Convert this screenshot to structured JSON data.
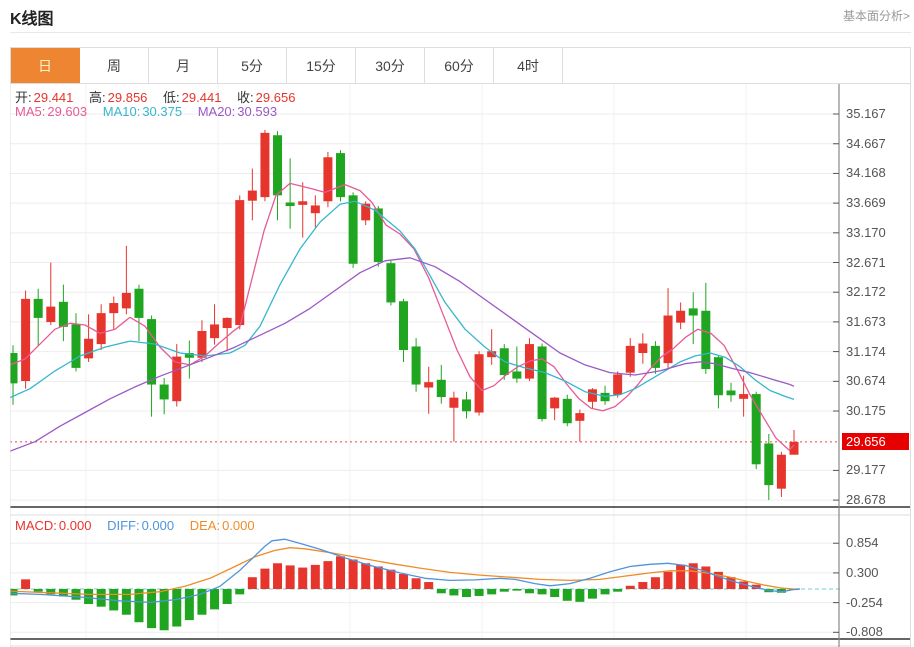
{
  "header": {
    "title": "K线图",
    "link": "基本面分析>"
  },
  "tabs": {
    "items": [
      "日",
      "周",
      "月",
      "5分",
      "15分",
      "30分",
      "60分",
      "4时"
    ],
    "selected_index": 0
  },
  "info": {
    "ohlc": {
      "open_label": "开:",
      "open": "29.441",
      "high_label": "高:",
      "high": "29.856",
      "low_label": "低:",
      "low": "29.441",
      "close_label": "收:",
      "close": "29.656"
    },
    "ma": {
      "ma5_label": "MA5:",
      "ma5": "29.603",
      "ma10_label": "MA10:",
      "ma10": "30.375",
      "ma20_label": "MA20:",
      "ma20": "30.593"
    },
    "macd": {
      "macd_label": "MACD:",
      "macd": "0.000",
      "diff_label": "DIFF:",
      "diff": "0.000",
      "dea_label": "DEA:",
      "dea": "0.000"
    }
  },
  "colors": {
    "up": "#e5352c",
    "down": "#1fa51f",
    "ma5": "#e85a96",
    "ma10": "#36b6ce",
    "ma20": "#9b59c6",
    "diff": "#4f94dd",
    "dea": "#ee8c28",
    "tab_accent": "#ee8533",
    "tab_selected_text": "#fdf3cd",
    "badge_bg": "#e60000",
    "price_line": "#f54141",
    "zero_line": "#6fcfcf",
    "grid": "#ededed",
    "vgrid": "#f1f1f1",
    "dark_line": "#333",
    "axis_text": "#555",
    "border": "#ddd",
    "sep": "#888"
  },
  "chart_data": {
    "type": "candlestick+macd",
    "title": "K线图",
    "price_axis": {
      "ticks": [
        35.167,
        34.667,
        34.168,
        33.669,
        33.17,
        32.671,
        32.172,
        31.673,
        31.174,
        30.674,
        30.175,
        29.177,
        28.678
      ],
      "current_price": 29.656
    },
    "macd_axis": {
      "ticks": [
        0.854,
        0.3,
        -0.254,
        -0.808
      ]
    },
    "candles": [
      [
        31.15,
        31.28,
        30.28,
        30.64
      ],
      [
        30.68,
        32.2,
        30.55,
        32.06
      ],
      [
        32.06,
        32.23,
        31.26,
        31.74
      ],
      [
        31.67,
        32.67,
        31.62,
        31.93
      ],
      [
        32.01,
        32.3,
        31.35,
        31.59
      ],
      [
        31.63,
        31.82,
        30.84,
        30.9
      ],
      [
        31.06,
        31.8,
        31.0,
        31.39
      ],
      [
        31.3,
        31.97,
        31.2,
        31.82
      ],
      [
        31.82,
        32.1,
        31.55,
        31.99
      ],
      [
        31.9,
        32.95,
        31.8,
        32.16
      ],
      [
        32.23,
        32.3,
        31.35,
        31.74
      ],
      [
        31.72,
        31.78,
        30.08,
        30.62
      ],
      [
        30.62,
        30.73,
        30.12,
        30.37
      ],
      [
        30.34,
        31.3,
        30.25,
        31.09
      ],
      [
        31.15,
        31.36,
        30.72,
        31.07
      ],
      [
        31.07,
        31.7,
        31.0,
        31.52
      ],
      [
        31.4,
        31.97,
        31.29,
        31.63
      ],
      [
        31.57,
        31.75,
        31.18,
        31.74
      ],
      [
        31.62,
        33.8,
        31.55,
        33.72
      ],
      [
        33.71,
        34.25,
        33.38,
        33.88
      ],
      [
        33.77,
        34.9,
        33.7,
        34.85
      ],
      [
        34.81,
        34.88,
        33.38,
        33.8
      ],
      [
        33.68,
        34.42,
        33.24,
        33.62
      ],
      [
        33.64,
        34.02,
        33.09,
        33.7
      ],
      [
        33.5,
        33.8,
        33.26,
        33.63
      ],
      [
        33.7,
        34.53,
        33.6,
        34.44
      ],
      [
        34.51,
        34.56,
        33.7,
        33.77
      ],
      [
        33.8,
        33.85,
        32.58,
        32.65
      ],
      [
        33.38,
        33.7,
        33.3,
        33.66
      ],
      [
        33.58,
        33.62,
        32.6,
        32.68
      ],
      [
        32.66,
        32.7,
        31.95,
        32.0
      ],
      [
        32.02,
        32.06,
        31.0,
        31.2
      ],
      [
        31.26,
        31.4,
        30.5,
        30.62
      ],
      [
        30.57,
        30.92,
        30.13,
        30.66
      ],
      [
        30.7,
        30.95,
        30.3,
        30.41
      ],
      [
        30.23,
        30.5,
        29.66,
        30.4
      ],
      [
        30.37,
        30.5,
        30.05,
        30.17
      ],
      [
        30.15,
        31.18,
        30.1,
        31.13
      ],
      [
        31.08,
        31.55,
        30.95,
        31.18
      ],
      [
        31.23,
        31.3,
        30.7,
        30.78
      ],
      [
        30.84,
        31.26,
        30.65,
        30.72
      ],
      [
        30.72,
        31.4,
        30.68,
        31.3
      ],
      [
        31.26,
        31.31,
        30.0,
        30.04
      ],
      [
        30.22,
        30.41,
        30.02,
        30.4
      ],
      [
        30.38,
        30.45,
        29.92,
        29.97
      ],
      [
        30.01,
        30.2,
        29.66,
        30.14
      ],
      [
        30.33,
        30.56,
        30.22,
        30.54
      ],
      [
        30.48,
        30.6,
        30.28,
        30.34
      ],
      [
        30.45,
        30.84,
        30.4,
        30.79
      ],
      [
        30.82,
        31.4,
        30.75,
        31.27
      ],
      [
        31.15,
        31.48,
        30.97,
        31.31
      ],
      [
        31.27,
        31.35,
        30.8,
        30.9
      ],
      [
        30.98,
        32.24,
        30.9,
        31.78
      ],
      [
        31.66,
        32.0,
        31.55,
        31.86
      ],
      [
        31.9,
        32.17,
        31.3,
        31.78
      ],
      [
        31.86,
        32.33,
        30.8,
        30.88
      ],
      [
        31.08,
        31.1,
        30.22,
        30.44
      ],
      [
        30.52,
        30.65,
        30.33,
        30.44
      ],
      [
        30.38,
        30.77,
        30.08,
        30.46
      ],
      [
        30.46,
        30.5,
        29.2,
        29.28
      ],
      [
        29.63,
        29.79,
        28.68,
        28.93
      ],
      [
        28.87,
        29.49,
        28.73,
        29.44
      ],
      [
        29.441,
        29.856,
        29.441,
        29.656
      ]
    ],
    "ma5": [
      [
        10,
        30.95
      ],
      [
        25,
        31.05
      ],
      [
        40,
        31.3
      ],
      [
        55,
        31.55
      ],
      [
        70,
        31.65
      ],
      [
        85,
        31.62
      ],
      [
        100,
        31.48
      ],
      [
        115,
        31.55
      ],
      [
        130,
        31.75
      ],
      [
        145,
        31.6
      ],
      [
        160,
        31.25
      ],
      [
        175,
        31.0
      ],
      [
        190,
        30.95
      ],
      [
        205,
        31.1
      ],
      [
        218,
        31.3
      ],
      [
        232,
        31.5
      ],
      [
        240,
        31.6
      ],
      [
        252,
        32.4
      ],
      [
        264,
        33.2
      ],
      [
        276,
        33.8
      ],
      [
        290,
        34.0
      ],
      [
        310,
        33.92
      ],
      [
        325,
        33.85
      ],
      [
        345,
        33.98
      ],
      [
        360,
        33.88
      ],
      [
        372,
        33.68
      ],
      [
        386,
        33.3
      ],
      [
        400,
        33.15
      ],
      [
        414,
        32.9
      ],
      [
        429,
        32.4
      ],
      [
        443,
        31.8
      ],
      [
        457,
        31.2
      ],
      [
        470,
        30.75
      ],
      [
        482,
        30.52
      ],
      [
        494,
        30.6
      ],
      [
        506,
        30.78
      ],
      [
        518,
        30.92
      ],
      [
        531,
        31.02
      ],
      [
        542,
        31.05
      ],
      [
        554,
        30.92
      ],
      [
        567,
        30.62
      ],
      [
        579,
        30.38
      ],
      [
        591,
        30.22
      ],
      [
        603,
        30.18
      ],
      [
        615,
        30.25
      ],
      [
        627,
        30.42
      ],
      [
        638,
        30.62
      ],
      [
        650,
        30.88
      ],
      [
        661,
        31.08
      ],
      [
        673,
        31.22
      ],
      [
        686,
        31.42
      ],
      [
        698,
        31.55
      ],
      [
        711,
        31.48
      ],
      [
        724,
        31.28
      ],
      [
        737,
        30.88
      ],
      [
        750,
        30.45
      ],
      [
        763,
        30.08
      ],
      [
        776,
        29.72
      ],
      [
        789,
        29.52
      ],
      [
        794,
        29.6
      ]
    ],
    "ma10": [
      [
        10,
        30.4
      ],
      [
        30,
        30.55
      ],
      [
        55,
        30.85
      ],
      [
        80,
        31.1
      ],
      [
        105,
        31.25
      ],
      [
        130,
        31.35
      ],
      [
        155,
        31.3
      ],
      [
        180,
        31.15
      ],
      [
        205,
        31.1
      ],
      [
        230,
        31.15
      ],
      [
        245,
        31.28
      ],
      [
        260,
        31.6
      ],
      [
        280,
        32.3
      ],
      [
        300,
        32.9
      ],
      [
        320,
        33.35
      ],
      [
        340,
        33.65
      ],
      [
        355,
        33.7
      ],
      [
        375,
        33.55
      ],
      [
        400,
        33.2
      ],
      [
        415,
        32.9
      ],
      [
        425,
        32.6
      ],
      [
        445,
        32.0
      ],
      [
        465,
        31.55
      ],
      [
        485,
        31.25
      ],
      [
        505,
        31.0
      ],
      [
        525,
        30.9
      ],
      [
        545,
        30.82
      ],
      [
        565,
        30.68
      ],
      [
        585,
        30.5
      ],
      [
        605,
        30.42
      ],
      [
        620,
        30.45
      ],
      [
        635,
        30.55
      ],
      [
        650,
        30.7
      ],
      [
        665,
        30.85
      ],
      [
        680,
        31.0
      ],
      [
        695,
        31.1
      ],
      [
        710,
        31.15
      ],
      [
        725,
        31.08
      ],
      [
        740,
        30.92
      ],
      [
        755,
        30.7
      ],
      [
        770,
        30.52
      ],
      [
        785,
        30.42
      ],
      [
        794,
        30.37
      ]
    ],
    "ma20": [
      [
        10,
        29.5
      ],
      [
        35,
        29.66
      ],
      [
        60,
        29.92
      ],
      [
        85,
        30.15
      ],
      [
        110,
        30.38
      ],
      [
        135,
        30.58
      ],
      [
        160,
        30.76
      ],
      [
        185,
        30.92
      ],
      [
        210,
        31.08
      ],
      [
        235,
        31.25
      ],
      [
        260,
        31.45
      ],
      [
        285,
        31.65
      ],
      [
        310,
        31.9
      ],
      [
        335,
        32.2
      ],
      [
        360,
        32.5
      ],
      [
        385,
        32.7
      ],
      [
        410,
        32.75
      ],
      [
        435,
        32.6
      ],
      [
        460,
        32.35
      ],
      [
        485,
        32.05
      ],
      [
        510,
        31.75
      ],
      [
        535,
        31.45
      ],
      [
        560,
        31.15
      ],
      [
        585,
        30.95
      ],
      [
        610,
        30.82
      ],
      [
        635,
        30.78
      ],
      [
        660,
        30.85
      ],
      [
        685,
        30.97
      ],
      [
        700,
        31.0
      ],
      [
        715,
        30.97
      ],
      [
        730,
        30.9
      ],
      [
        750,
        30.82
      ],
      [
        770,
        30.72
      ],
      [
        790,
        30.62
      ],
      [
        794,
        30.59
      ]
    ],
    "macd_hist": [
      -0.12,
      0.18,
      -0.05,
      -0.1,
      -0.14,
      -0.2,
      -0.28,
      -0.33,
      -0.4,
      -0.48,
      -0.62,
      -0.73,
      -0.77,
      -0.7,
      -0.58,
      -0.48,
      -0.38,
      -0.28,
      -0.1,
      0.22,
      0.38,
      0.48,
      0.44,
      0.4,
      0.45,
      0.52,
      0.61,
      0.55,
      0.48,
      0.42,
      0.36,
      0.28,
      0.2,
      0.13,
      -0.08,
      -0.12,
      -0.15,
      -0.13,
      -0.1,
      -0.05,
      -0.03,
      -0.08,
      -0.1,
      -0.15,
      -0.22,
      -0.24,
      -0.18,
      -0.1,
      -0.05,
      0.06,
      0.13,
      0.22,
      0.32,
      0.45,
      0.48,
      0.42,
      0.32,
      0.22,
      0.14,
      0.08,
      -0.06,
      -0.07,
      -0.02
    ],
    "diff_line": [
      [
        10,
        -0.08
      ],
      [
        40,
        -0.1
      ],
      [
        80,
        -0.15
      ],
      [
        120,
        -0.22
      ],
      [
        150,
        -0.25
      ],
      [
        175,
        -0.2
      ],
      [
        200,
        -0.1
      ],
      [
        220,
        0.05
      ],
      [
        240,
        0.35
      ],
      [
        255,
        0.62
      ],
      [
        265,
        0.8
      ],
      [
        272,
        0.9
      ],
      [
        285,
        0.93
      ],
      [
        300,
        0.85
      ],
      [
        320,
        0.74
      ],
      [
        345,
        0.58
      ],
      [
        370,
        0.44
      ],
      [
        400,
        0.3
      ],
      [
        425,
        0.2
      ],
      [
        450,
        0.16
      ],
      [
        475,
        0.17
      ],
      [
        500,
        0.2
      ],
      [
        515,
        0.18
      ],
      [
        535,
        0.1
      ],
      [
        550,
        0.06
      ],
      [
        570,
        0.1
      ],
      [
        590,
        0.2
      ],
      [
        610,
        0.32
      ],
      [
        630,
        0.42
      ],
      [
        650,
        0.46
      ],
      [
        668,
        0.48
      ],
      [
        685,
        0.44
      ],
      [
        700,
        0.36
      ],
      [
        715,
        0.26
      ],
      [
        730,
        0.16
      ],
      [
        745,
        0.08
      ],
      [
        758,
        0.02
      ],
      [
        770,
        -0.03
      ],
      [
        782,
        -0.05
      ],
      [
        794,
        -0.01
      ],
      [
        800,
        0.0
      ]
    ],
    "dea_line": [
      [
        10,
        -0.04
      ],
      [
        50,
        -0.07
      ],
      [
        90,
        -0.1
      ],
      [
        130,
        -0.1
      ],
      [
        160,
        -0.05
      ],
      [
        185,
        0.05
      ],
      [
        210,
        0.2
      ],
      [
        235,
        0.42
      ],
      [
        255,
        0.6
      ],
      [
        275,
        0.72
      ],
      [
        290,
        0.77
      ],
      [
        305,
        0.75
      ],
      [
        330,
        0.68
      ],
      [
        360,
        0.58
      ],
      [
        390,
        0.48
      ],
      [
        420,
        0.39
      ],
      [
        450,
        0.31
      ],
      [
        480,
        0.26
      ],
      [
        510,
        0.22
      ],
      [
        540,
        0.18
      ],
      [
        570,
        0.16
      ],
      [
        600,
        0.18
      ],
      [
        625,
        0.24
      ],
      [
        650,
        0.3
      ],
      [
        670,
        0.34
      ],
      [
        690,
        0.34
      ],
      [
        710,
        0.29
      ],
      [
        730,
        0.22
      ],
      [
        750,
        0.13
      ],
      [
        765,
        0.07
      ],
      [
        780,
        0.02
      ],
      [
        794,
        0.0
      ],
      [
        800,
        0.0
      ]
    ]
  }
}
